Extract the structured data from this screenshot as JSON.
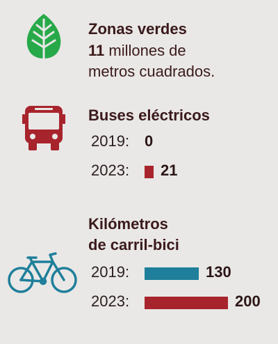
{
  "sections": {
    "green": {
      "title": "Zonas verdes",
      "value_text": "11",
      "line1_rest": " millones de",
      "line2": "metros cuadrados."
    },
    "buses": {
      "title": "Buses eléctricos"
    },
    "bike": {
      "title_line1": "Kilómetros",
      "title_line2": "de carril-bici"
    }
  },
  "colors": {
    "leaf": "#27a94a",
    "bus": "#a8242c",
    "bike_2019": "#1f7f9a",
    "bar_2023": "#a8242c",
    "background": "#e9e8e6"
  },
  "icons": [
    "leaf-icon",
    "bus-icon",
    "bicycle-icon"
  ],
  "chart_data": [
    {
      "type": "bar",
      "orientation": "horizontal",
      "title": "Buses eléctricos",
      "categories": [
        "2019:",
        "2023:"
      ],
      "values": [
        0,
        21
      ],
      "value_labels": [
        "0",
        "21"
      ],
      "colors": [
        "#a8242c",
        "#a8242c"
      ]
    },
    {
      "type": "bar",
      "orientation": "horizontal",
      "title": "Kilómetros de carril-bici",
      "categories": [
        "2019:",
        "2023:"
      ],
      "values": [
        130,
        200
      ],
      "value_labels": [
        "130",
        "200"
      ],
      "colors": [
        "#1f7f9a",
        "#a8242c"
      ]
    }
  ]
}
